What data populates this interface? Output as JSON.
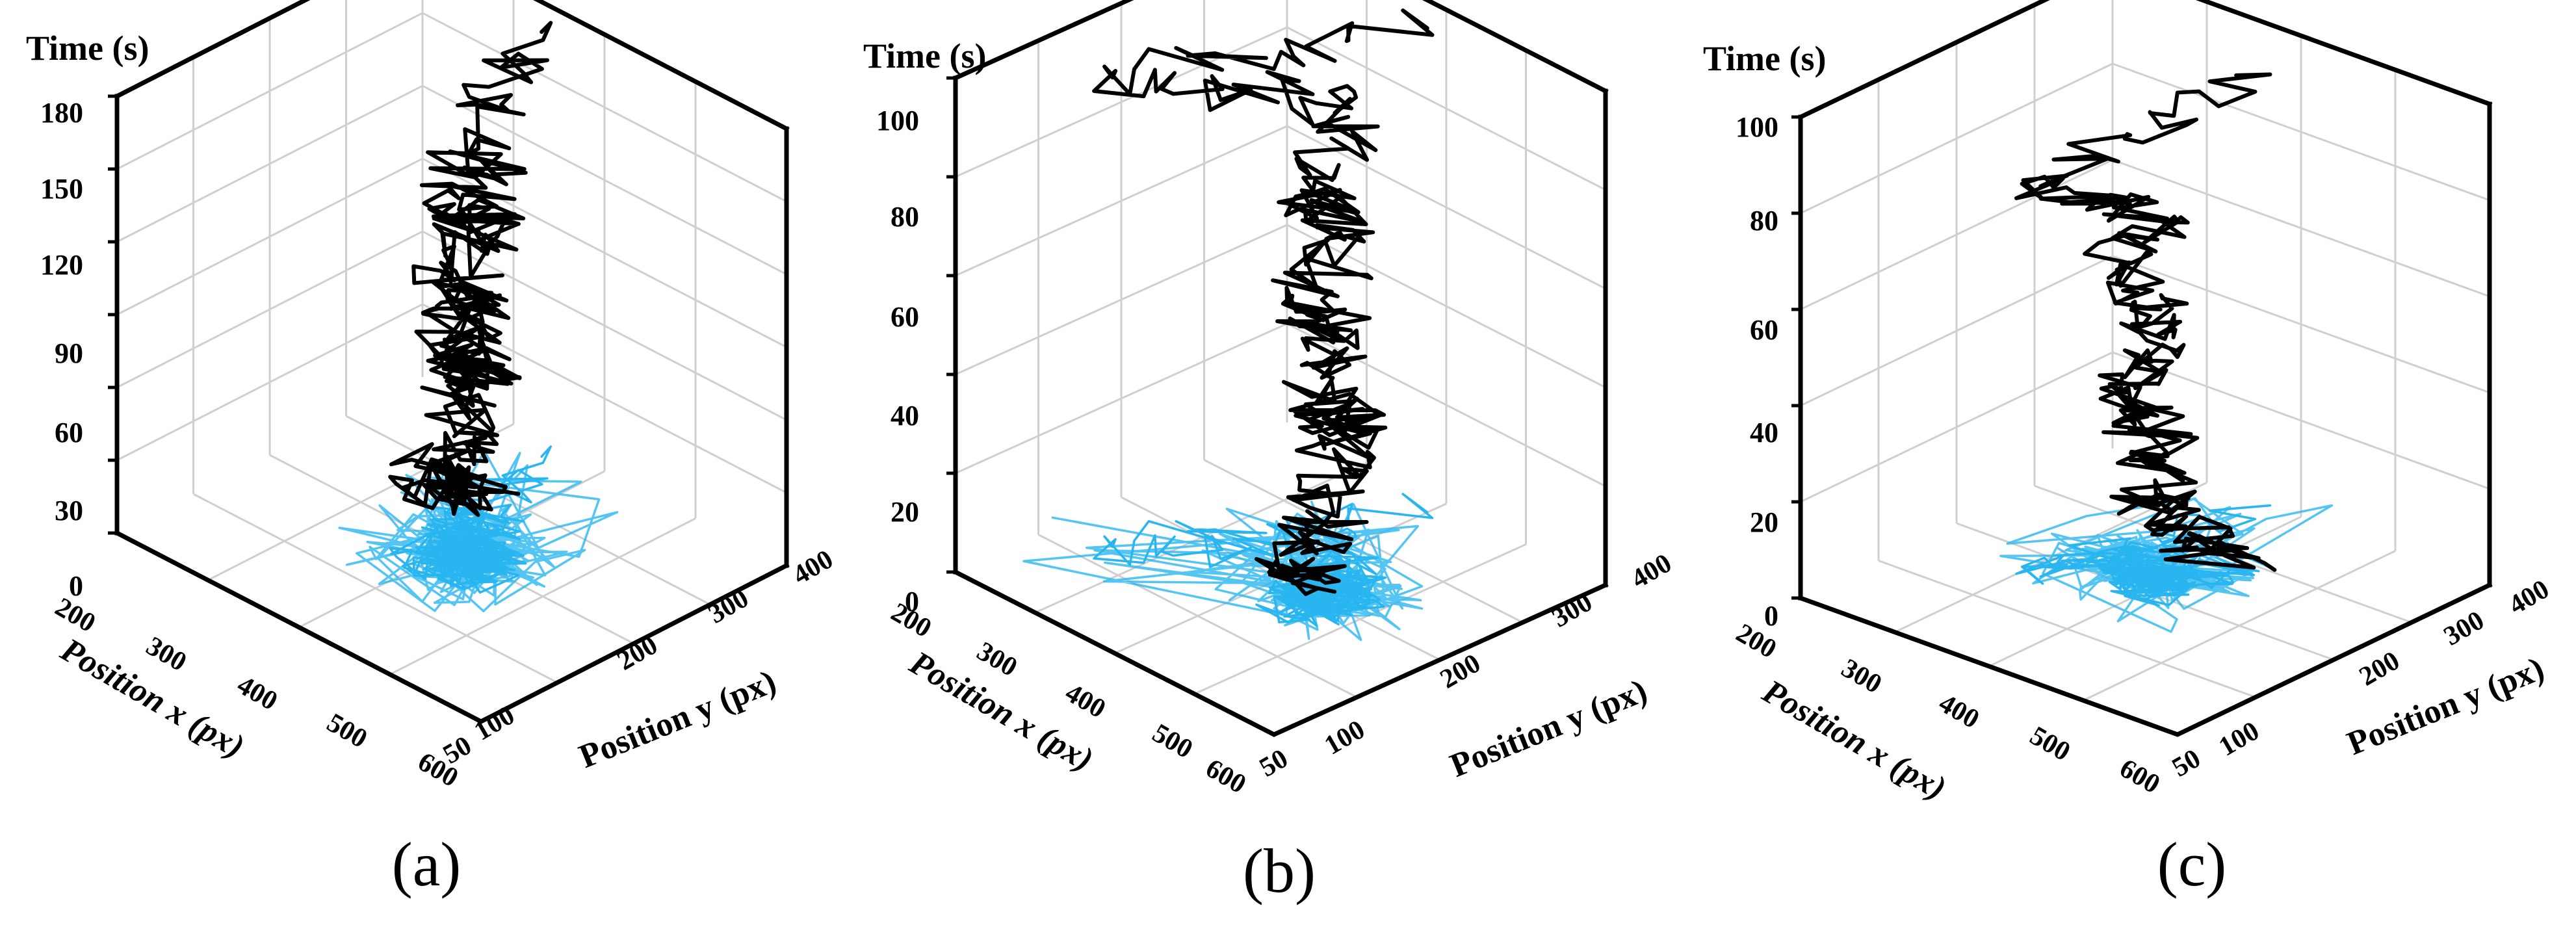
{
  "colors": {
    "trajectory": "#000000",
    "projection": "#29b6f0",
    "grid": "#cfcfcf"
  },
  "chart_data": [
    {
      "type": "line3d",
      "caption": "(a)",
      "axis_labels": {
        "time": "Time (s)",
        "x": "Position x (px)",
        "y": "Position y (px)"
      },
      "time_ticks": [
        "0",
        "30",
        "60",
        "90",
        "120",
        "150",
        "180"
      ],
      "x_ticks": [
        "200",
        "300",
        "400",
        "500",
        "600"
      ],
      "y_ticks": [
        "50",
        "100",
        "200",
        "300",
        "400"
      ],
      "x_range": [
        200,
        600
      ],
      "y_range": [
        50,
        400
      ],
      "time_range": [
        0,
        180
      ],
      "series": [
        {
          "kind": "trajectory",
          "t": [
            0,
            15,
            30,
            45,
            60,
            75,
            90,
            105,
            120,
            135,
            150,
            165,
            175
          ],
          "x": [
            350,
            380,
            400,
            410,
            390,
            420,
            410,
            430,
            420,
            410,
            440,
            420,
            350
          ],
          "y": [
            300,
            260,
            200,
            230,
            260,
            240,
            220,
            230,
            200,
            240,
            210,
            230,
            380
          ]
        },
        {
          "kind": "floor_projection"
        }
      ]
    },
    {
      "type": "line3d",
      "caption": "(b)",
      "axis_labels": {
        "time": "Time (s)",
        "x": "Position x (px)",
        "y": "Position y (px)"
      },
      "time_ticks": [
        "0",
        "20",
        "40",
        "60",
        "80",
        "100"
      ],
      "x_ticks": [
        "200",
        "300",
        "400",
        "500",
        "600"
      ],
      "y_ticks": [
        "50",
        "100",
        "200",
        "300",
        "400"
      ],
      "x_range": [
        200,
        600
      ],
      "y_range": [
        50,
        400
      ],
      "time_range": [
        0,
        100
      ],
      "series": [
        {
          "kind": "trajectory",
          "t": [
            0,
            10,
            20,
            30,
            40,
            50,
            60,
            70,
            80,
            90,
            95,
            98
          ],
          "x": [
            420,
            450,
            460,
            440,
            470,
            440,
            450,
            430,
            440,
            400,
            250,
            400
          ],
          "y": [
            250,
            200,
            230,
            260,
            230,
            240,
            220,
            260,
            230,
            300,
            150,
            380
          ]
        },
        {
          "kind": "floor_projection"
        }
      ]
    },
    {
      "type": "line3d",
      "caption": "(c)",
      "axis_labels": {
        "time": "Time (s)",
        "x": "Position x (px)",
        "y": "Position y (px)"
      },
      "time_ticks": [
        "0",
        "20",
        "40",
        "60",
        "80",
        "100"
      ],
      "x_ticks": [
        "200",
        "300",
        "400",
        "500",
        "600"
      ],
      "y_ticks": [
        "50",
        "100",
        "200",
        "300",
        "400"
      ],
      "x_range": [
        200,
        600
      ],
      "y_range": [
        50,
        400
      ],
      "time_range": [
        0,
        100
      ],
      "series": [
        {
          "kind": "trajectory",
          "t": [
            0,
            10,
            20,
            30,
            40,
            50,
            60,
            70,
            80,
            90
          ],
          "x": [
            420,
            410,
            400,
            380,
            370,
            390,
            360,
            350,
            320,
            350
          ],
          "y": [
            300,
            260,
            230,
            250,
            230,
            260,
            240,
            280,
            200,
            380
          ]
        },
        {
          "kind": "floor_projection"
        }
      ]
    }
  ]
}
